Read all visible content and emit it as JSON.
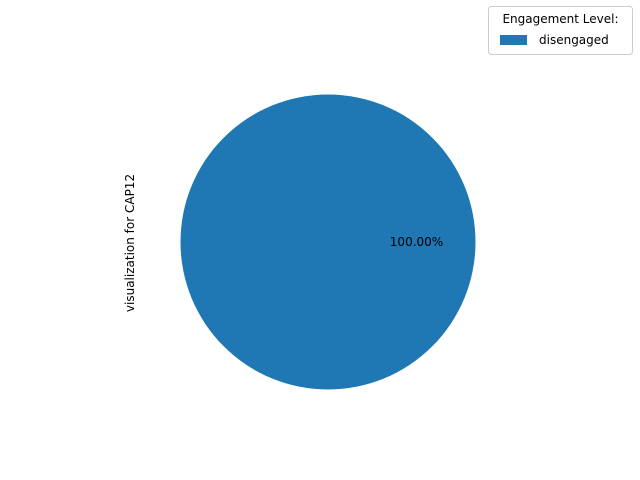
{
  "chart_data": {
    "type": "pie",
    "ylabel": "visualization for CAP12",
    "slices": [
      {
        "label": "disengaged",
        "value": 100.0,
        "percent_label": "100.00%",
        "color": "#1f77b4"
      }
    ],
    "legend": {
      "title": "Engagement Level:",
      "placement": "top-right",
      "entries": [
        "disengaged"
      ]
    }
  }
}
